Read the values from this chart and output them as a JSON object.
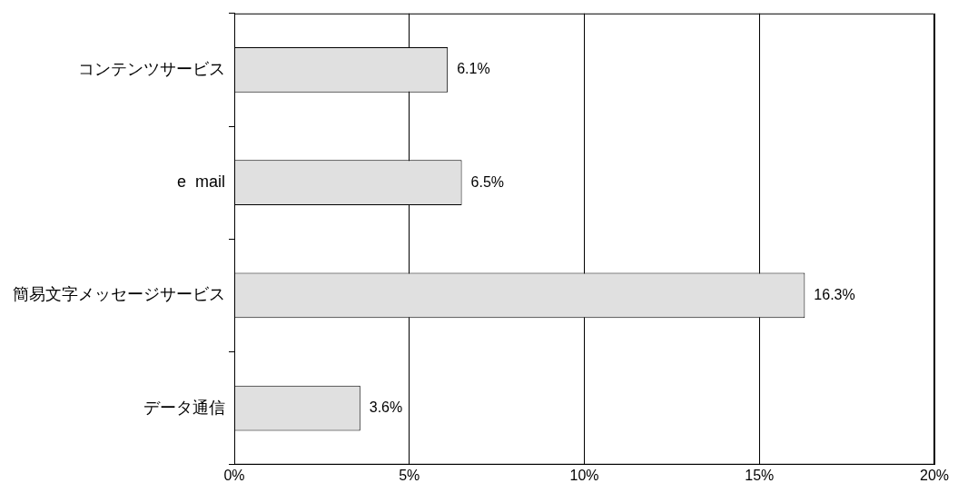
{
  "chart_data": {
    "type": "bar",
    "orientation": "horizontal",
    "categories": [
      "コンテンツサービス",
      "e  mail",
      "簡易文字メッセージサービス",
      "データ通信"
    ],
    "values": [
      6.1,
      6.5,
      16.3,
      3.6
    ],
    "value_labels": [
      "6.1%",
      "6.5%",
      "16.3%",
      "3.6%"
    ],
    "color": "#e0e0e0",
    "xlim": [
      0,
      20
    ],
    "xticks": [
      {
        "value": 0,
        "label": "0%"
      },
      {
        "value": 5,
        "label": "5%"
      },
      {
        "value": 10,
        "label": "10%"
      },
      {
        "value": 15,
        "label": "15%"
      },
      {
        "value": 20,
        "label": "20%"
      }
    ],
    "grid": "x",
    "legend": false
  }
}
